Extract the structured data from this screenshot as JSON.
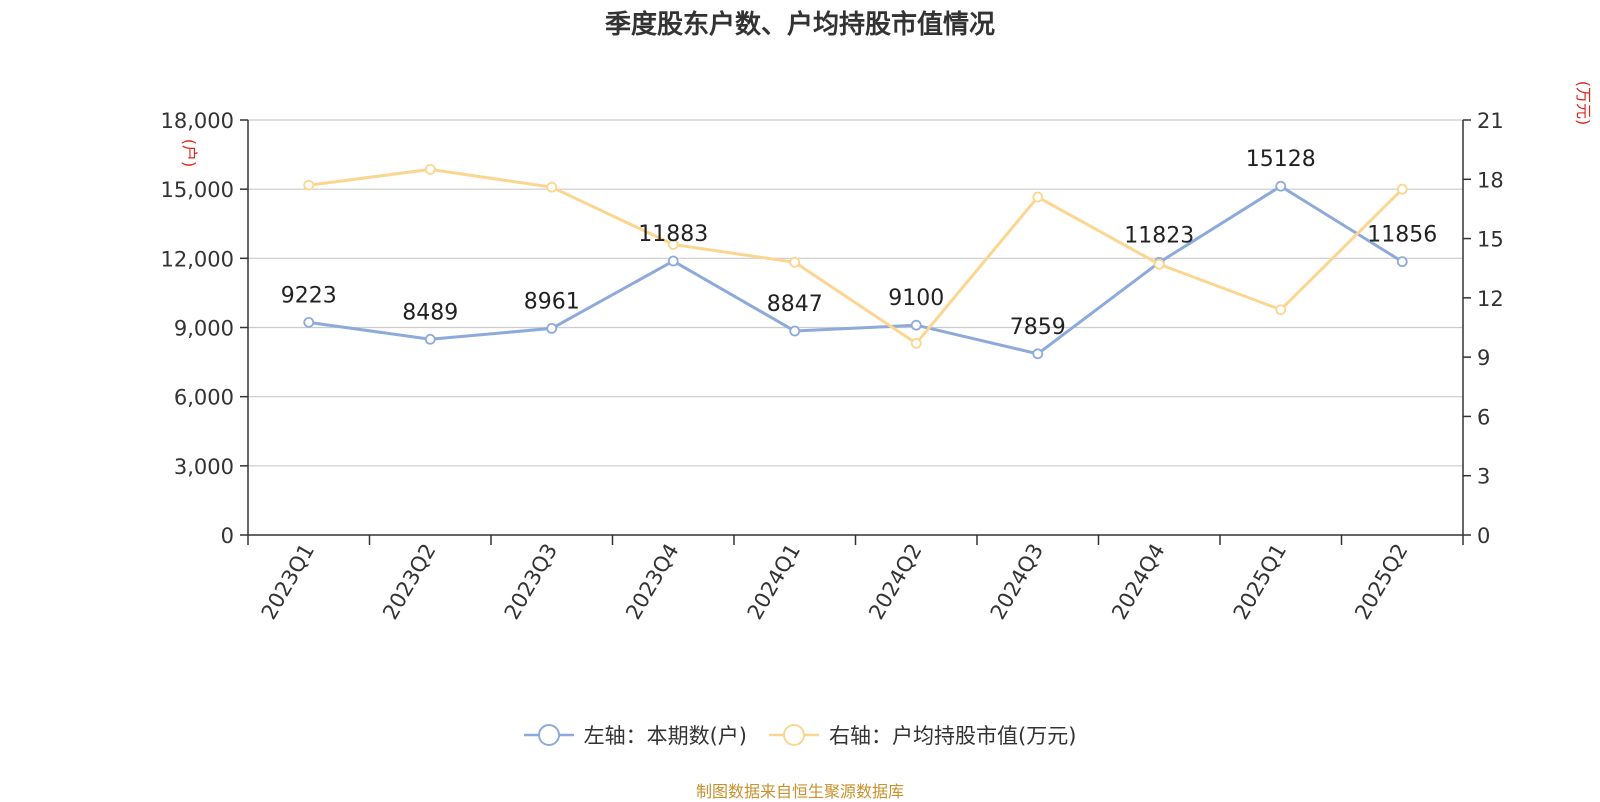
{
  "chart_data": {
    "type": "line",
    "title": "季度股东户数、户均持股市值情况",
    "categories": [
      "2023Q1",
      "2023Q2",
      "2023Q3",
      "2023Q4",
      "2024Q1",
      "2024Q2",
      "2024Q3",
      "2024Q4",
      "2025Q1",
      "2025Q2"
    ],
    "y_left": {
      "label": "(户)",
      "range": [
        0,
        18000
      ],
      "ticks": [
        "0",
        "3,000",
        "6,000",
        "9,000",
        "12,000",
        "15,000",
        "18,000"
      ]
    },
    "y_right": {
      "label": "(万元)",
      "range": [
        0,
        21
      ],
      "ticks": [
        "0",
        "3",
        "6",
        "9",
        "12",
        "15",
        "18",
        "21"
      ]
    },
    "grid": true,
    "legend_position": "bottom",
    "series": [
      {
        "name": "左轴：本期数(户)",
        "axis": "left",
        "color": "#8eaadb",
        "values": [
          9223,
          8489,
          8961,
          11883,
          8847,
          9100,
          7859,
          11823,
          15128,
          11856
        ],
        "labels": [
          "9223",
          "8489",
          "8961",
          "11883",
          "8847",
          "9100",
          "7859",
          "11823",
          "15128",
          "11856"
        ]
      },
      {
        "name": "右轴：户均持股市值(万元)",
        "axis": "right",
        "color": "#fcd690",
        "values": [
          17.7,
          18.5,
          17.6,
          14.7,
          13.8,
          9.7,
          17.1,
          13.7,
          11.4,
          17.5
        ]
      }
    ],
    "source": "制图数据来自恒生聚源数据库"
  }
}
